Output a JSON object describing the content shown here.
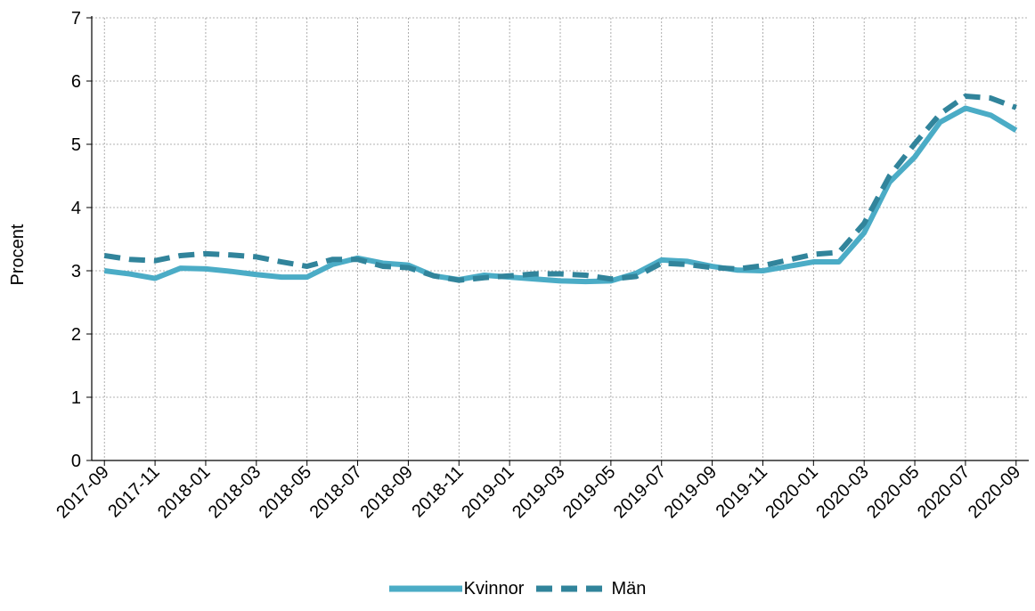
{
  "chart_data": {
    "type": "line",
    "title": "",
    "xlabel": "",
    "ylabel": "Procent",
    "ylim": [
      0,
      7
    ],
    "yticks": [
      "0",
      "1",
      "2",
      "3",
      "4",
      "5",
      "6",
      "7"
    ],
    "x": [
      "2017-09",
      "2017-10",
      "2017-11",
      "2017-12",
      "2018-01",
      "2018-02",
      "2018-03",
      "2018-04",
      "2018-05",
      "2018-06",
      "2018-07",
      "2018-08",
      "2018-09",
      "2018-10",
      "2018-11",
      "2018-12",
      "2019-01",
      "2019-02",
      "2019-03",
      "2019-04",
      "2019-05",
      "2019-06",
      "2019-07",
      "2019-08",
      "2019-09",
      "2019-10",
      "2019-11",
      "2019-12",
      "2020-01",
      "2020-02",
      "2020-03",
      "2020-04",
      "2020-05",
      "2020-06",
      "2020-07",
      "2020-08",
      "2020-09"
    ],
    "xtick_labels": [
      "2017-09",
      "2017-11",
      "2018-01",
      "2018-03",
      "2018-05",
      "2018-07",
      "2018-09",
      "2018-11",
      "2019-01",
      "2019-03",
      "2019-05",
      "2019-07",
      "2019-09",
      "2019-11",
      "2020-01",
      "2020-03",
      "2020-05",
      "2020-07",
      "2020-09"
    ],
    "grid": true,
    "legend_position": "bottom-center",
    "series": [
      {
        "name": "Kvinnor",
        "color": "#4bacc6",
        "style": "solid",
        "values": [
          3.0,
          2.95,
          2.88,
          3.04,
          3.03,
          2.99,
          2.94,
          2.9,
          2.9,
          3.1,
          3.2,
          3.12,
          3.09,
          2.92,
          2.86,
          2.93,
          2.9,
          2.87,
          2.84,
          2.83,
          2.84,
          2.96,
          3.17,
          3.15,
          3.07,
          3.01,
          3.0,
          3.07,
          3.14,
          3.14,
          3.6,
          4.4,
          4.8,
          5.35,
          5.57,
          5.46,
          5.22
        ]
      },
      {
        "name": "Män",
        "color": "#31849b",
        "style": "dashed",
        "values": [
          3.24,
          3.18,
          3.16,
          3.24,
          3.27,
          3.25,
          3.22,
          3.14,
          3.07,
          3.18,
          3.18,
          3.07,
          3.05,
          2.92,
          2.85,
          2.89,
          2.92,
          2.95,
          2.95,
          2.93,
          2.87,
          2.91,
          3.12,
          3.1,
          3.05,
          3.03,
          3.08,
          3.17,
          3.26,
          3.29,
          3.75,
          4.5,
          5.01,
          5.48,
          5.76,
          5.73,
          5.58
        ]
      }
    ]
  }
}
